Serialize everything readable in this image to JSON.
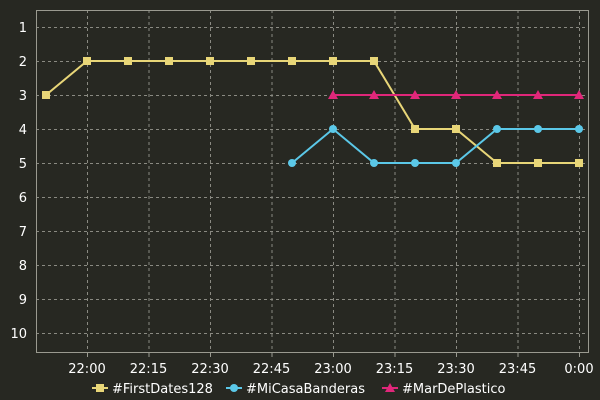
{
  "chart_data": {
    "type": "line",
    "x": [
      "21:50",
      "22:00",
      "22:10",
      "22:20",
      "22:30",
      "22:40",
      "22:50",
      "23:00",
      "23:10",
      "23:20",
      "23:30",
      "23:40",
      "23:50",
      "00:00"
    ],
    "x_tick_labels": [
      "22:00",
      "22:15",
      "22:30",
      "22:45",
      "23:00",
      "23:15",
      "23:30",
      "23:45",
      "0:00"
    ],
    "y_ticks": [
      1,
      2,
      3,
      4,
      5,
      6,
      7,
      8,
      9,
      10
    ],
    "ylim": [
      1,
      10
    ],
    "y_inverted": true,
    "grid": true,
    "legend_position": "bottom",
    "series": [
      {
        "name": "#FirstDates128",
        "color": "#e8d678",
        "marker": "square",
        "values": [
          3,
          2,
          2,
          2,
          2,
          2,
          2,
          2,
          2,
          4,
          4,
          5,
          5,
          5
        ]
      },
      {
        "name": "#MiCasaBanderas",
        "color": "#5bc8e8",
        "marker": "circle",
        "values": [
          null,
          null,
          null,
          null,
          null,
          null,
          5,
          4,
          5,
          5,
          5,
          4,
          4,
          4
        ]
      },
      {
        "name": "#MarDePlastico",
        "color": "#e0277a",
        "marker": "triangle",
        "values": [
          null,
          null,
          null,
          null,
          null,
          null,
          null,
          3,
          3,
          3,
          3,
          3,
          3,
          3
        ]
      }
    ]
  }
}
